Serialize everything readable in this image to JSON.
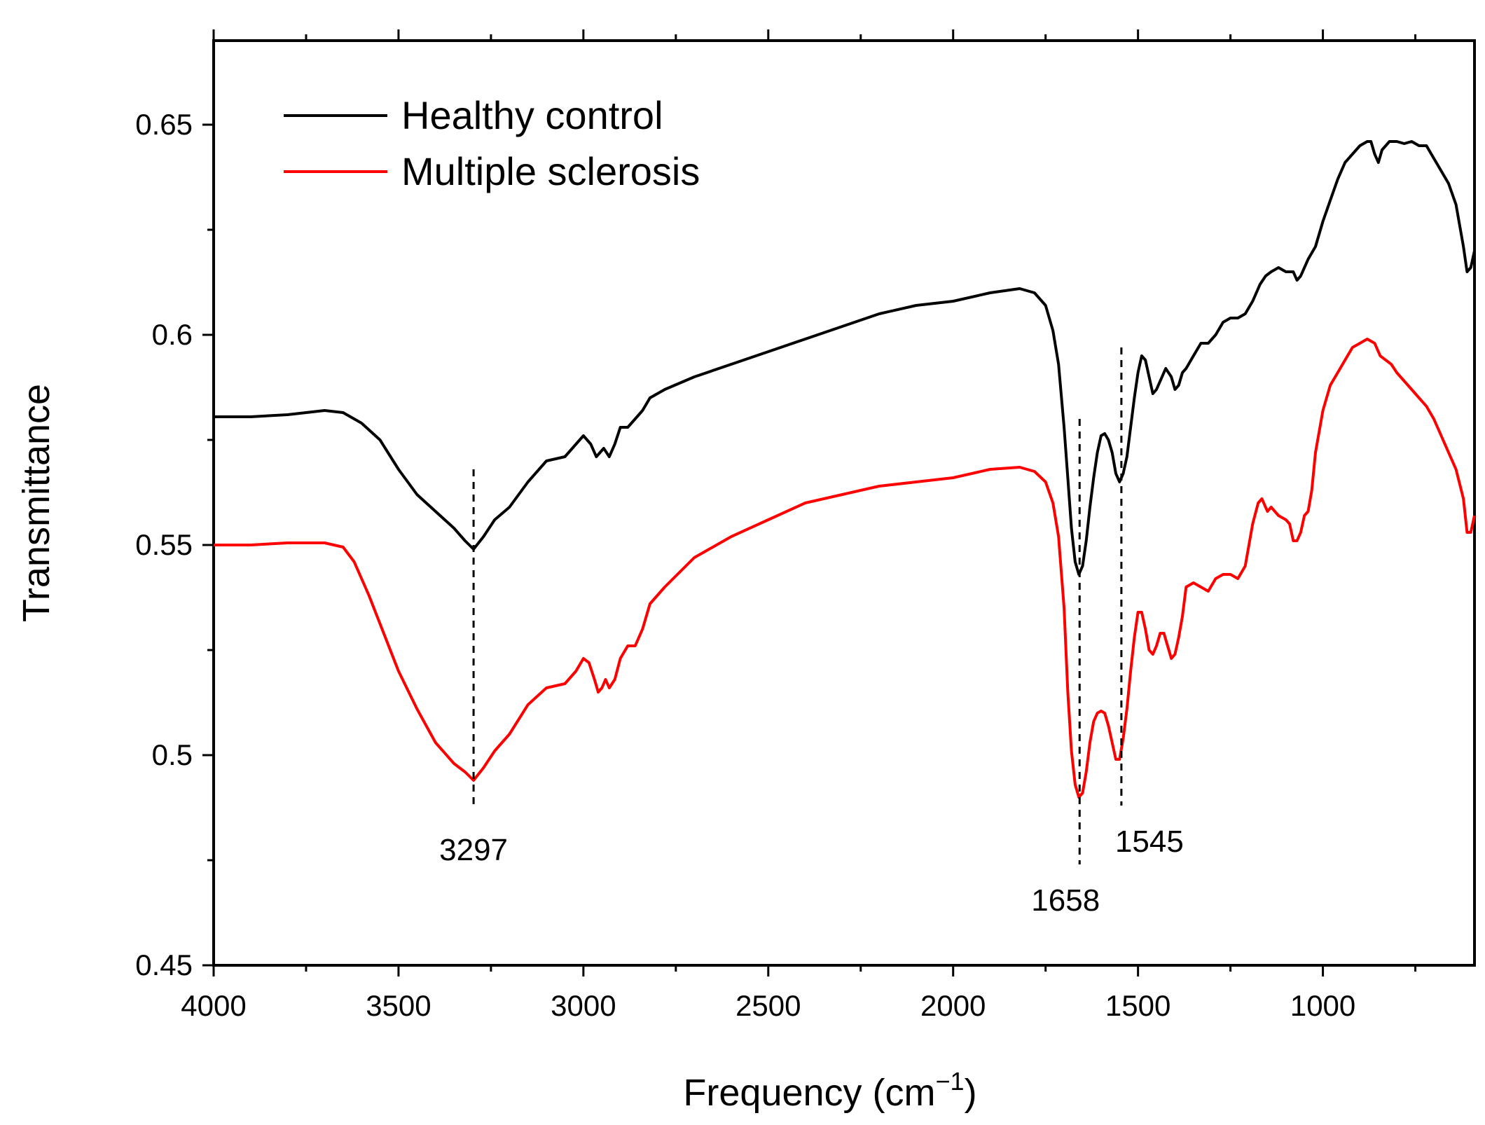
{
  "chart_data": {
    "type": "line",
    "title": "",
    "xlabel": "Frequency (cm",
    "xlabel_sup": "−1",
    "xlabel_suffix": ")",
    "ylabel": "Transmittance",
    "xlim": [
      4000,
      590
    ],
    "ylim": [
      0.45,
      0.67
    ],
    "x_ticks": [
      4000,
      3500,
      3000,
      2500,
      2000,
      1500,
      1000
    ],
    "x_tick_labels": [
      "4000",
      "3500",
      "3000",
      "2500",
      "2000",
      "1500",
      "1000"
    ],
    "y_ticks": [
      0.45,
      0.5,
      0.55,
      0.6,
      0.65
    ],
    "y_tick_labels": [
      "0.45",
      "0.5",
      "0.55",
      "0.6",
      "0.65"
    ],
    "legend_position": "top-left",
    "series": [
      {
        "name": "Healthy control",
        "color": "#000000",
        "points": [
          [
            4000,
            0.5805
          ],
          [
            3900,
            0.5805
          ],
          [
            3800,
            0.581
          ],
          [
            3700,
            0.582
          ],
          [
            3650,
            0.5815
          ],
          [
            3600,
            0.579
          ],
          [
            3550,
            0.575
          ],
          [
            3500,
            0.568
          ],
          [
            3450,
            0.562
          ],
          [
            3400,
            0.558
          ],
          [
            3350,
            0.554
          ],
          [
            3320,
            0.551
          ],
          [
            3297,
            0.549
          ],
          [
            3270,
            0.552
          ],
          [
            3240,
            0.556
          ],
          [
            3200,
            0.559
          ],
          [
            3150,
            0.565
          ],
          [
            3100,
            0.57
          ],
          [
            3050,
            0.571
          ],
          [
            3020,
            0.574
          ],
          [
            3000,
            0.576
          ],
          [
            2980,
            0.574
          ],
          [
            2965,
            0.571
          ],
          [
            2955,
            0.572
          ],
          [
            2945,
            0.573
          ],
          [
            2930,
            0.571
          ],
          [
            2915,
            0.574
          ],
          [
            2900,
            0.578
          ],
          [
            2880,
            0.578
          ],
          [
            2860,
            0.58
          ],
          [
            2840,
            0.582
          ],
          [
            2820,
            0.585
          ],
          [
            2780,
            0.587
          ],
          [
            2700,
            0.59
          ],
          [
            2600,
            0.593
          ],
          [
            2500,
            0.596
          ],
          [
            2400,
            0.599
          ],
          [
            2300,
            0.602
          ],
          [
            2200,
            0.605
          ],
          [
            2100,
            0.607
          ],
          [
            2000,
            0.608
          ],
          [
            1900,
            0.61
          ],
          [
            1820,
            0.611
          ],
          [
            1780,
            0.61
          ],
          [
            1750,
            0.607
          ],
          [
            1730,
            0.601
          ],
          [
            1715,
            0.593
          ],
          [
            1700,
            0.578
          ],
          [
            1690,
            0.566
          ],
          [
            1680,
            0.554
          ],
          [
            1670,
            0.546
          ],
          [
            1660,
            0.543
          ],
          [
            1650,
            0.545
          ],
          [
            1640,
            0.551
          ],
          [
            1630,
            0.559
          ],
          [
            1620,
            0.566
          ],
          [
            1610,
            0.572
          ],
          [
            1600,
            0.576
          ],
          [
            1590,
            0.5765
          ],
          [
            1580,
            0.575
          ],
          [
            1570,
            0.572
          ],
          [
            1560,
            0.567
          ],
          [
            1550,
            0.565
          ],
          [
            1540,
            0.567
          ],
          [
            1530,
            0.571
          ],
          [
            1520,
            0.578
          ],
          [
            1510,
            0.585
          ],
          [
            1500,
            0.591
          ],
          [
            1490,
            0.595
          ],
          [
            1480,
            0.594
          ],
          [
            1470,
            0.59
          ],
          [
            1460,
            0.586
          ],
          [
            1450,
            0.587
          ],
          [
            1440,
            0.589
          ],
          [
            1425,
            0.592
          ],
          [
            1410,
            0.59
          ],
          [
            1400,
            0.587
          ],
          [
            1390,
            0.588
          ],
          [
            1380,
            0.591
          ],
          [
            1370,
            0.592
          ],
          [
            1350,
            0.595
          ],
          [
            1330,
            0.598
          ],
          [
            1310,
            0.598
          ],
          [
            1290,
            0.6
          ],
          [
            1270,
            0.603
          ],
          [
            1250,
            0.604
          ],
          [
            1230,
            0.604
          ],
          [
            1210,
            0.605
          ],
          [
            1190,
            0.608
          ],
          [
            1170,
            0.612
          ],
          [
            1155,
            0.614
          ],
          [
            1140,
            0.615
          ],
          [
            1120,
            0.616
          ],
          [
            1100,
            0.615
          ],
          [
            1080,
            0.615
          ],
          [
            1070,
            0.613
          ],
          [
            1060,
            0.614
          ],
          [
            1040,
            0.618
          ],
          [
            1020,
            0.621
          ],
          [
            1000,
            0.627
          ],
          [
            980,
            0.632
          ],
          [
            960,
            0.637
          ],
          [
            940,
            0.641
          ],
          [
            920,
            0.643
          ],
          [
            900,
            0.645
          ],
          [
            880,
            0.646
          ],
          [
            870,
            0.646
          ],
          [
            860,
            0.643
          ],
          [
            850,
            0.641
          ],
          [
            840,
            0.644
          ],
          [
            820,
            0.646
          ],
          [
            800,
            0.646
          ],
          [
            780,
            0.6455
          ],
          [
            760,
            0.646
          ],
          [
            740,
            0.645
          ],
          [
            720,
            0.645
          ],
          [
            700,
            0.642
          ],
          [
            680,
            0.639
          ],
          [
            660,
            0.636
          ],
          [
            640,
            0.631
          ],
          [
            620,
            0.621
          ],
          [
            610,
            0.615
          ],
          [
            600,
            0.616
          ],
          [
            590,
            0.62
          ]
        ]
      },
      {
        "name": "Multiple sclerosis",
        "color": "#ff0000",
        "points": [
          [
            4000,
            0.55
          ],
          [
            3900,
            0.55
          ],
          [
            3800,
            0.5505
          ],
          [
            3700,
            0.5505
          ],
          [
            3650,
            0.5495
          ],
          [
            3620,
            0.546
          ],
          [
            3580,
            0.538
          ],
          [
            3540,
            0.529
          ],
          [
            3500,
            0.52
          ],
          [
            3450,
            0.511
          ],
          [
            3400,
            0.503
          ],
          [
            3350,
            0.498
          ],
          [
            3320,
            0.496
          ],
          [
            3297,
            0.494
          ],
          [
            3270,
            0.497
          ],
          [
            3240,
            0.501
          ],
          [
            3200,
            0.505
          ],
          [
            3150,
            0.512
          ],
          [
            3100,
            0.516
          ],
          [
            3050,
            0.517
          ],
          [
            3020,
            0.52
          ],
          [
            3000,
            0.523
          ],
          [
            2985,
            0.522
          ],
          [
            2970,
            0.518
          ],
          [
            2960,
            0.515
          ],
          [
            2950,
            0.516
          ],
          [
            2940,
            0.518
          ],
          [
            2930,
            0.516
          ],
          [
            2915,
            0.518
          ],
          [
            2900,
            0.523
          ],
          [
            2880,
            0.526
          ],
          [
            2860,
            0.526
          ],
          [
            2840,
            0.53
          ],
          [
            2820,
            0.536
          ],
          [
            2780,
            0.54
          ],
          [
            2700,
            0.547
          ],
          [
            2600,
            0.552
          ],
          [
            2500,
            0.556
          ],
          [
            2400,
            0.56
          ],
          [
            2300,
            0.562
          ],
          [
            2200,
            0.564
          ],
          [
            2100,
            0.565
          ],
          [
            2000,
            0.566
          ],
          [
            1900,
            0.568
          ],
          [
            1820,
            0.5685
          ],
          [
            1780,
            0.5675
          ],
          [
            1750,
            0.565
          ],
          [
            1730,
            0.56
          ],
          [
            1715,
            0.552
          ],
          [
            1700,
            0.535
          ],
          [
            1690,
            0.515
          ],
          [
            1680,
            0.501
          ],
          [
            1670,
            0.493
          ],
          [
            1660,
            0.49
          ],
          [
            1650,
            0.491
          ],
          [
            1640,
            0.496
          ],
          [
            1630,
            0.503
          ],
          [
            1620,
            0.508
          ],
          [
            1610,
            0.51
          ],
          [
            1600,
            0.5105
          ],
          [
            1590,
            0.51
          ],
          [
            1580,
            0.507
          ],
          [
            1570,
            0.503
          ],
          [
            1560,
            0.499
          ],
          [
            1550,
            0.499
          ],
          [
            1540,
            0.504
          ],
          [
            1530,
            0.511
          ],
          [
            1520,
            0.52
          ],
          [
            1510,
            0.528
          ],
          [
            1500,
            0.534
          ],
          [
            1490,
            0.534
          ],
          [
            1480,
            0.53
          ],
          [
            1470,
            0.525
          ],
          [
            1460,
            0.524
          ],
          [
            1450,
            0.526
          ],
          [
            1440,
            0.529
          ],
          [
            1430,
            0.529
          ],
          [
            1420,
            0.526
          ],
          [
            1410,
            0.523
          ],
          [
            1400,
            0.524
          ],
          [
            1390,
            0.528
          ],
          [
            1380,
            0.533
          ],
          [
            1370,
            0.54
          ],
          [
            1350,
            0.541
          ],
          [
            1330,
            0.54
          ],
          [
            1310,
            0.539
          ],
          [
            1290,
            0.542
          ],
          [
            1270,
            0.543
          ],
          [
            1250,
            0.543
          ],
          [
            1230,
            0.542
          ],
          [
            1210,
            0.545
          ],
          [
            1190,
            0.555
          ],
          [
            1175,
            0.56
          ],
          [
            1165,
            0.561
          ],
          [
            1150,
            0.558
          ],
          [
            1140,
            0.559
          ],
          [
            1120,
            0.557
          ],
          [
            1100,
            0.556
          ],
          [
            1090,
            0.555
          ],
          [
            1080,
            0.551
          ],
          [
            1070,
            0.551
          ],
          [
            1060,
            0.553
          ],
          [
            1050,
            0.557
          ],
          [
            1040,
            0.558
          ],
          [
            1030,
            0.563
          ],
          [
            1020,
            0.572
          ],
          [
            1000,
            0.582
          ],
          [
            980,
            0.588
          ],
          [
            960,
            0.591
          ],
          [
            940,
            0.594
          ],
          [
            920,
            0.597
          ],
          [
            900,
            0.598
          ],
          [
            880,
            0.599
          ],
          [
            860,
            0.598
          ],
          [
            845,
            0.595
          ],
          [
            830,
            0.594
          ],
          [
            815,
            0.593
          ],
          [
            800,
            0.591
          ],
          [
            780,
            0.589
          ],
          [
            760,
            0.587
          ],
          [
            740,
            0.585
          ],
          [
            720,
            0.583
          ],
          [
            700,
            0.58
          ],
          [
            680,
            0.576
          ],
          [
            660,
            0.572
          ],
          [
            640,
            0.568
          ],
          [
            620,
            0.561
          ],
          [
            610,
            0.553
          ],
          [
            600,
            0.553
          ],
          [
            590,
            0.557
          ]
        ]
      }
    ],
    "annotations": [
      {
        "text": "3297",
        "x": 3297,
        "line_y_range": [
          0.488,
          0.568
        ],
        "label_y": 0.475
      },
      {
        "text": "1658",
        "x": 1658,
        "line_y_range": [
          0.474,
          0.58
        ],
        "label_y": 0.463
      },
      {
        "text": "1545",
        "x": 1545,
        "line_y_range": [
          0.488,
          0.597
        ],
        "label_y": 0.477
      }
    ]
  }
}
